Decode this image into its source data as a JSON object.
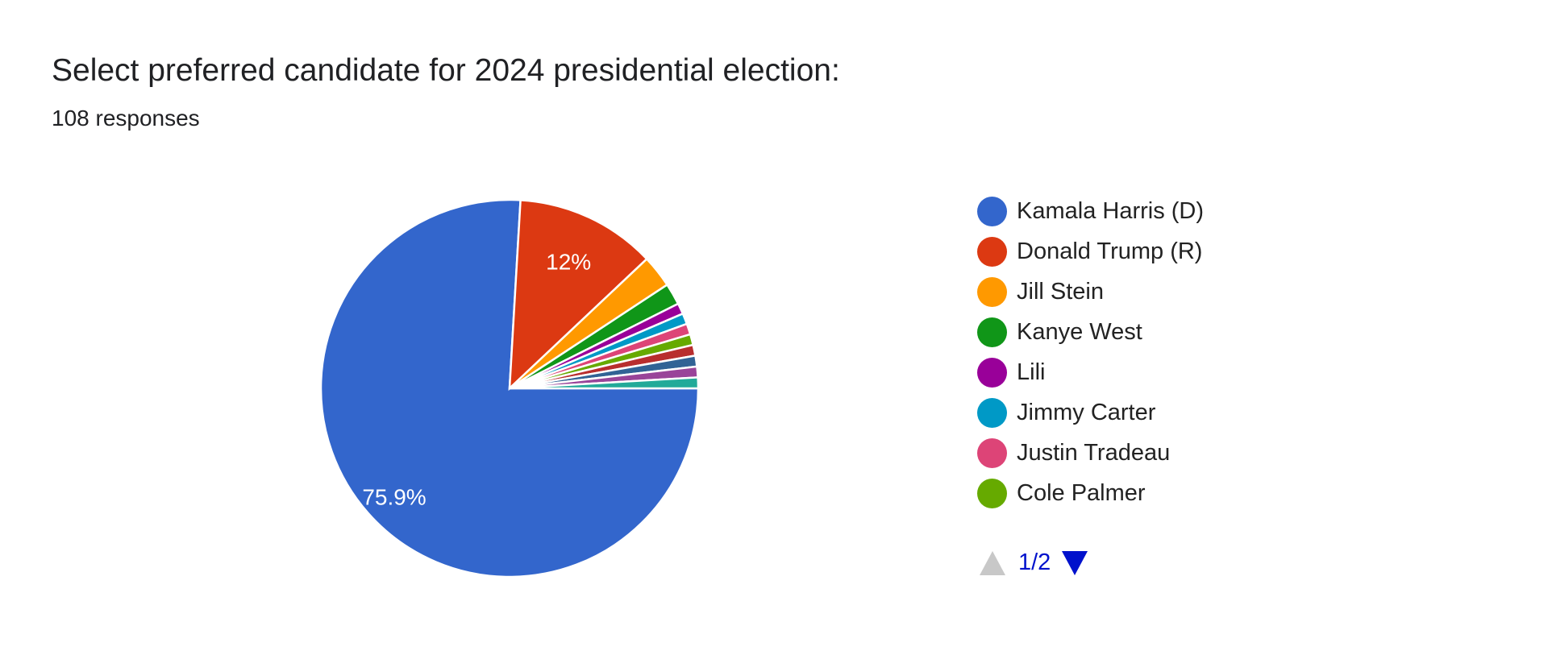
{
  "header": {
    "title": "Select preferred candidate for 2024 presidential election:",
    "subtitle": "108 responses"
  },
  "chart_data": {
    "type": "pie",
    "title": "Select preferred candidate for 2024 presidential election:",
    "total_responses": 108,
    "slices": [
      {
        "label": "Kamala Harris (D)",
        "value": 82,
        "percent_label": "75.9%",
        "color": "#3366cc"
      },
      {
        "label": "Donald Trump (R)",
        "value": 13,
        "percent_label": "12%",
        "color": "#dc3912"
      },
      {
        "label": "Jill Stein",
        "value": 3,
        "color": "#ff9900"
      },
      {
        "label": "Kanye West",
        "value": 2,
        "color": "#109618"
      },
      {
        "label": "Lili",
        "value": 1,
        "color": "#990099"
      },
      {
        "label": "Jimmy Carter",
        "value": 1,
        "color": "#0099c6"
      },
      {
        "label": "Justin Tradeau",
        "value": 1,
        "color": "#dd4477"
      },
      {
        "label": "Cole Palmer",
        "value": 1,
        "color": "#66aa00"
      },
      {
        "value": 1,
        "color": "#b82e2e"
      },
      {
        "value": 1,
        "color": "#316395"
      },
      {
        "value": 1,
        "color": "#994499"
      },
      {
        "value": 1,
        "color": "#22aa99"
      }
    ],
    "legend": {
      "placement": "right",
      "page": "1/2"
    }
  }
}
